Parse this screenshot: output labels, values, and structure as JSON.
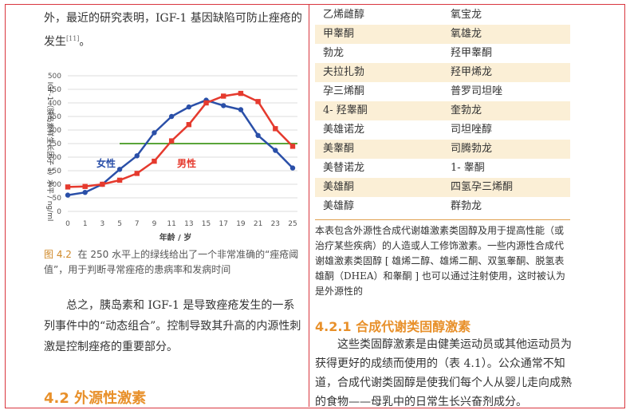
{
  "top_text": {
    "before": "外，最近的研究表明，IGF-1 基因缺陷可防止痤疮的发生",
    "citation": "[11]",
    "after": "。"
  },
  "chart_data": {
    "type": "line",
    "y_label": "IGF-1（胰岛素样生长因子 1）水平 / ng/ml",
    "x_label": "年龄 / 岁",
    "categories": [
      "0",
      "1",
      "3",
      "5",
      "7",
      "9",
      "11",
      "13",
      "15",
      "17",
      "19",
      "21",
      "23",
      "25"
    ],
    "series": [
      {
        "name": "女性",
        "color": "#2a4fa8",
        "values": [
          60,
          70,
          100,
          155,
          205,
          290,
          350,
          385,
          410,
          390,
          375,
          280,
          225,
          160
        ]
      },
      {
        "name": "男性",
        "color": "#e53a2e",
        "values": [
          90,
          92,
          100,
          115,
          140,
          185,
          260,
          320,
          400,
          425,
          435,
          405,
          305,
          240
        ]
      }
    ],
    "threshold": 250,
    "threshold_color": "#5aa53a",
    "ylim": [
      0,
      500
    ],
    "yticks": [
      0,
      50,
      100,
      150,
      200,
      250,
      300,
      350,
      400,
      450,
      500
    ],
    "grid": true
  },
  "figure_caption": {
    "number": "图 4.2",
    "text": "在 250 水平上的绿线给出了一个非常准确的“痤疮阈值”，用于判断寻常痤疮的患病率和发病时间"
  },
  "left_paragraph": "总之，胰岛素和 IGF-1 是导致痤疮发生的一系列事件中的“动态组合”。控制导致其升高的内源性刺激是控制痤疮的重要部分。",
  "left_heading": "4.2 外源性激素",
  "table": {
    "rows": [
      [
        "乙烯雌醇",
        "氧宝龙"
      ],
      [
        "甲睾酮",
        "氧雄龙"
      ],
      [
        "勃龙",
        "羟甲睾酮"
      ],
      [
        "夫拉扎勃",
        "羟甲烯龙"
      ],
      [
        "孕三烯酮",
        "普罗司坦唑"
      ],
      [
        "4- 羟睾酮",
        "奎勃龙"
      ],
      [
        "美雄诺龙",
        "司坦唑醇"
      ],
      [
        "美睾酮",
        "司腾勃龙"
      ],
      [
        "美替诺龙",
        "1- 睾酮"
      ],
      [
        "美雄酮",
        "四氢孕三烯酮"
      ],
      [
        "美雄醇",
        "群勃龙"
      ]
    ]
  },
  "table_note": "本表包含外源性合成代谢雄激素类固醇及用于提高性能（或治疗某些疾病）的人造或人工修饰激素。一些内源性合成代谢雄激素类固醇 [ 雄烯二醇、雄烯二酮、双氢睾酮、脱氢表雄酮（DHEA）和睾酮 ] 也可以通过注射使用，这时被认为是外源性的",
  "right_heading": "4.2.1 合成代谢类固醇激素",
  "right_paragraph": "这些类固醇激素是由健美运动员或其他运动员为获得更好的成绩而使用的（表 4.1）。公众通常不知道，合成代谢类固醇是使我们每个人从婴儿走向成熟的食物——母乳中的日常生长兴奋剂成分。"
}
